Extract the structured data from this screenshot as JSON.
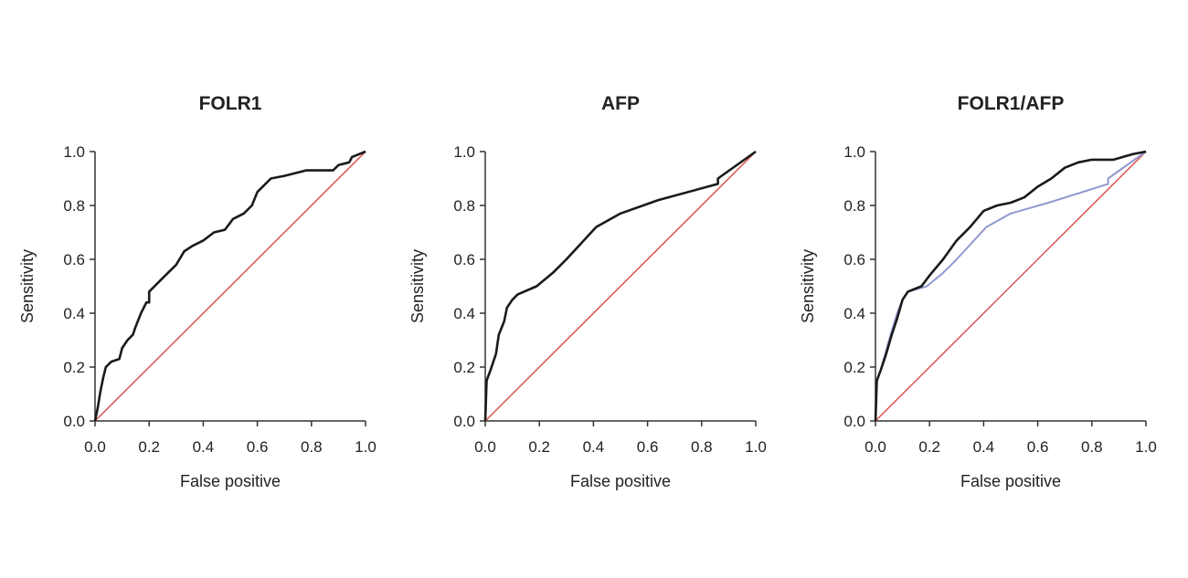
{
  "chart_data": [
    {
      "type": "line",
      "title": "FOLR1",
      "xlabel": "False positive",
      "ylabel": "Sensitivity",
      "xlim": [
        0,
        1
      ],
      "ylim": [
        0,
        1
      ],
      "ticks": [
        "0.0",
        "0.2",
        "0.4",
        "0.6",
        "0.8",
        "1.0"
      ],
      "series": [
        {
          "name": "FOLR1",
          "color": "#1a1a1a",
          "points": [
            [
              0,
              0
            ],
            [
              0.01,
              0.05
            ],
            [
              0.02,
              0.11
            ],
            [
              0.03,
              0.16
            ],
            [
              0.04,
              0.2
            ],
            [
              0.06,
              0.22
            ],
            [
              0.09,
              0.23
            ],
            [
              0.1,
              0.27
            ],
            [
              0.12,
              0.3
            ],
            [
              0.14,
              0.32
            ],
            [
              0.15,
              0.35
            ],
            [
              0.17,
              0.4
            ],
            [
              0.19,
              0.44
            ],
            [
              0.2,
              0.44
            ],
            [
              0.2,
              0.48
            ],
            [
              0.25,
              0.53
            ],
            [
              0.3,
              0.58
            ],
            [
              0.33,
              0.63
            ],
            [
              0.36,
              0.65
            ],
            [
              0.4,
              0.67
            ],
            [
              0.44,
              0.7
            ],
            [
              0.48,
              0.71
            ],
            [
              0.51,
              0.75
            ],
            [
              0.55,
              0.77
            ],
            [
              0.58,
              0.8
            ],
            [
              0.6,
              0.85
            ],
            [
              0.65,
              0.9
            ],
            [
              0.7,
              0.91
            ],
            [
              0.78,
              0.93
            ],
            [
              0.88,
              0.93
            ],
            [
              0.9,
              0.95
            ],
            [
              0.94,
              0.96
            ],
            [
              0.95,
              0.98
            ],
            [
              1,
              1
            ]
          ]
        },
        {
          "name": "Reference",
          "color": "#d9534f",
          "points": [
            [
              0,
              0
            ],
            [
              1,
              1
            ]
          ]
        }
      ]
    },
    {
      "type": "line",
      "title": "AFP",
      "xlabel": "False positive",
      "ylabel": "Sensitivity",
      "xlim": [
        0,
        1
      ],
      "ylim": [
        0,
        1
      ],
      "ticks": [
        "0.0",
        "0.2",
        "0.4",
        "0.6",
        "0.8",
        "1.0"
      ],
      "series": [
        {
          "name": "AFP",
          "color": "#1a1a1a",
          "points": [
            [
              0,
              0
            ],
            [
              0.005,
              0.15
            ],
            [
              0.02,
              0.19
            ],
            [
              0.04,
              0.25
            ],
            [
              0.05,
              0.32
            ],
            [
              0.07,
              0.37
            ],
            [
              0.08,
              0.42
            ],
            [
              0.1,
              0.45
            ],
            [
              0.12,
              0.47
            ],
            [
              0.19,
              0.5
            ],
            [
              0.25,
              0.55
            ],
            [
              0.3,
              0.6
            ],
            [
              0.41,
              0.72
            ],
            [
              0.5,
              0.77
            ],
            [
              0.64,
              0.82
            ],
            [
              0.86,
              0.88
            ],
            [
              0.86,
              0.9
            ],
            [
              1,
              1
            ]
          ]
        },
        {
          "name": "Reference",
          "color": "#d9534f",
          "points": [
            [
              0,
              0
            ],
            [
              1,
              1
            ]
          ]
        }
      ]
    },
    {
      "type": "line",
      "title": "FOLR1/AFP",
      "xlabel": "False positive",
      "ylabel": "Sensitivity",
      "xlim": [
        0,
        1
      ],
      "ylim": [
        0,
        1
      ],
      "ticks": [
        "0.0",
        "0.2",
        "0.4",
        "0.6",
        "0.8",
        "1.0"
      ],
      "series": [
        {
          "name": "FOLR1/AFP",
          "color": "#1a1a1a",
          "points": [
            [
              0,
              0
            ],
            [
              0.005,
              0.15
            ],
            [
              0.02,
              0.19
            ],
            [
              0.04,
              0.25
            ],
            [
              0.06,
              0.32
            ],
            [
              0.08,
              0.38
            ],
            [
              0.1,
              0.45
            ],
            [
              0.12,
              0.48
            ],
            [
              0.17,
              0.5
            ],
            [
              0.2,
              0.54
            ],
            [
              0.25,
              0.6
            ],
            [
              0.3,
              0.67
            ],
            [
              0.35,
              0.72
            ],
            [
              0.4,
              0.78
            ],
            [
              0.45,
              0.8
            ],
            [
              0.5,
              0.81
            ],
            [
              0.55,
              0.83
            ],
            [
              0.6,
              0.87
            ],
            [
              0.65,
              0.9
            ],
            [
              0.7,
              0.94
            ],
            [
              0.75,
              0.96
            ],
            [
              0.8,
              0.97
            ],
            [
              0.88,
              0.97
            ],
            [
              0.95,
              0.99
            ],
            [
              1,
              1
            ]
          ]
        },
        {
          "name": "AFP",
          "color": "#8f9ad0",
          "points": [
            [
              0,
              0
            ],
            [
              0.005,
              0.15
            ],
            [
              0.02,
              0.19
            ],
            [
              0.05,
              0.3
            ],
            [
              0.08,
              0.4
            ],
            [
              0.1,
              0.45
            ],
            [
              0.12,
              0.48
            ],
            [
              0.19,
              0.5
            ],
            [
              0.25,
              0.55
            ],
            [
              0.3,
              0.6
            ],
            [
              0.41,
              0.72
            ],
            [
              0.5,
              0.77
            ],
            [
              0.64,
              0.81
            ],
            [
              0.86,
              0.88
            ],
            [
              0.86,
              0.9
            ],
            [
              1,
              1
            ]
          ]
        },
        {
          "name": "Reference",
          "color": "#d9534f",
          "points": [
            [
              0,
              0
            ],
            [
              1,
              1
            ]
          ]
        }
      ]
    }
  ]
}
